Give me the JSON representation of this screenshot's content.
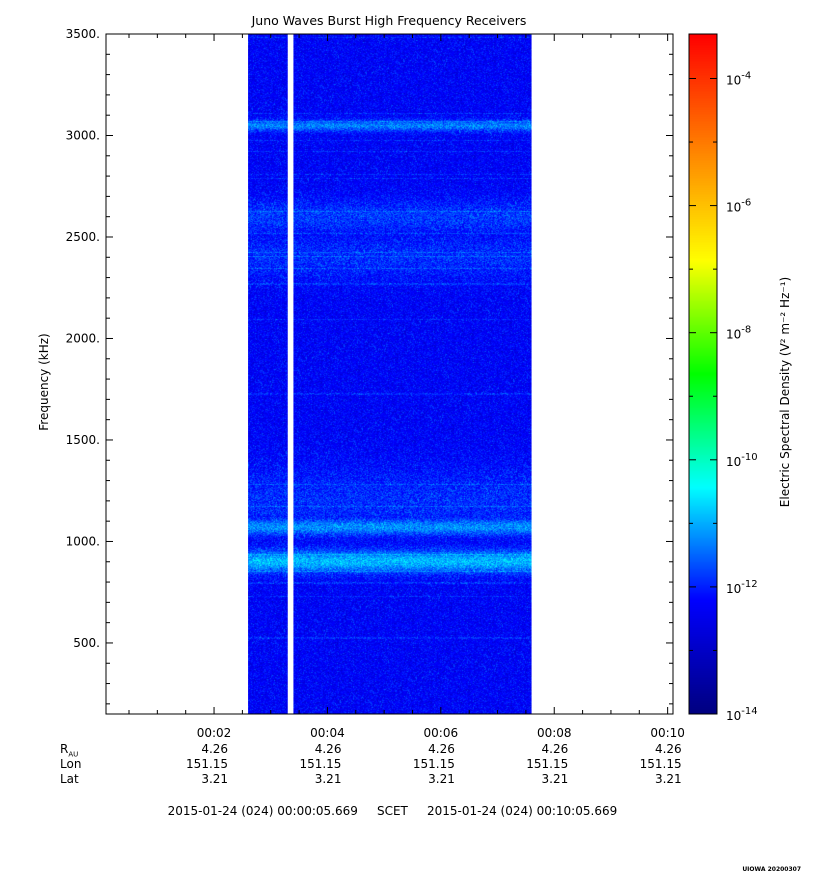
{
  "chart_data": {
    "type": "heatmap",
    "title": "Juno Waves Burst High Frequency Receivers",
    "ylabel": "Frequency (kHz)",
    "ylim": [
      150,
      3500
    ],
    "xlim_minutes": [
      0.0945,
      10.0945
    ],
    "y_ticks": [
      500,
      1000,
      1500,
      2000,
      2500,
      3000,
      3500
    ],
    "y_tick_labels": [
      "500.",
      "1000.",
      "1500.",
      "2000.",
      "2500.",
      "3000.",
      "3500."
    ],
    "x_ticks": [
      "00:02",
      "00:04",
      "00:06",
      "00:08",
      "00:10"
    ],
    "data_coverage_minutes": [
      2.6,
      7.6
    ],
    "data_gap_minutes": [
      3.3,
      3.4
    ],
    "noise_floor_log10": -12.3,
    "emission_bands": [
      {
        "freq_khz": 3050,
        "log10_density": -11.3,
        "width_khz": 20
      },
      {
        "freq_khz": 2600,
        "log10_density": -11.8,
        "width_khz": 60
      },
      {
        "freq_khz": 2400,
        "log10_density": -11.9,
        "width_khz": 80
      },
      {
        "freq_khz": 1200,
        "log10_density": -11.9,
        "width_khz": 120
      },
      {
        "freq_khz": 1070,
        "log10_density": -11.2,
        "width_khz": 30
      },
      {
        "freq_khz": 900,
        "log10_density": -10.9,
        "width_khz": 40
      }
    ],
    "colorbar": {
      "label": "Electric Spectral Density (V² m⁻² Hz⁻¹)",
      "log_range": [
        -14,
        -3.3
      ],
      "tick_exponents": [
        -14,
        -12,
        -10,
        -8,
        -6,
        -4
      ],
      "colors": [
        "#000080",
        "#0000ff",
        "#00ffff",
        "#00ff00",
        "#ffff00",
        "#ff8000",
        "#ff0000"
      ]
    },
    "footer": {
      "rows": [
        {
          "label": "R",
          "label_sub": "AU",
          "values": [
            "4.26",
            "4.26",
            "4.26",
            "4.26",
            "4.26"
          ]
        },
        {
          "label": "Lon",
          "values": [
            "151.15",
            "151.15",
            "151.15",
            "151.15",
            "151.15"
          ]
        },
        {
          "label": "Lat",
          "values": [
            "3.21",
            "3.21",
            "3.21",
            "3.21",
            "3.21"
          ]
        }
      ],
      "start": "2015-01-24 (024) 00:00:05.669",
      "scet": "SCET",
      "end": "2015-01-24 (024) 00:10:05.669"
    },
    "stamp": "UIOWA 20200307"
  }
}
